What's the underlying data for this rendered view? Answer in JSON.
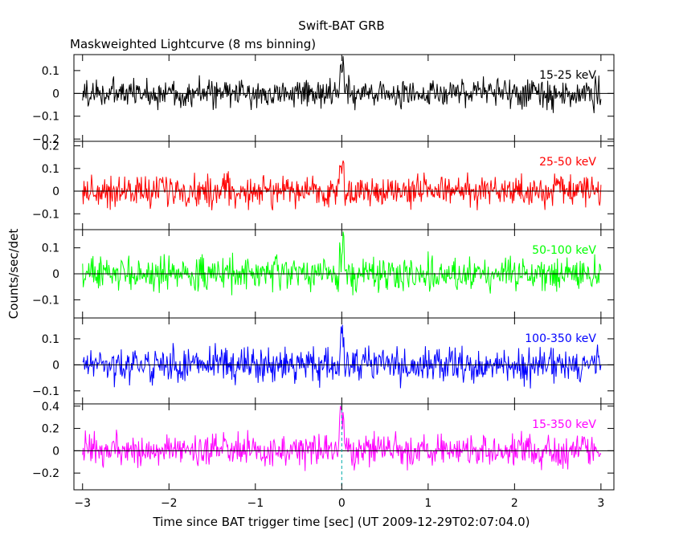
{
  "figure": {
    "title": "Swift-BAT GRB",
    "subtitle": "Maskweighted Lightcurve (8 ms binning)",
    "xlabel": "Time since BAT trigger time [sec] (UT 2009-12-29T02:07:04.0)",
    "ylabel": "Counts/sec/det"
  },
  "chart_data": [
    {
      "type": "line",
      "series": [
        {
          "name": "15-25 keV",
          "color": "#000000"
        }
      ],
      "xlim": [
        -3.1,
        3.15
      ],
      "ylim": [
        -0.21,
        0.17
      ],
      "yticks": [
        0.1,
        0,
        -0.1,
        -0.2
      ],
      "ytick_labels": [
        "0.1",
        "0",
        "−0.1",
        "−0.2"
      ],
      "noise_amplitude": 0.045,
      "x_start": -3.0,
      "x_end": 3.0,
      "bin": 0.008,
      "xticks": [
        -3,
        -2,
        -1,
        0,
        1,
        2,
        3
      ],
      "xtick_labels": [
        "−3",
        "−2",
        "−1",
        "0",
        "1",
        "2",
        "3"
      ],
      "grid": false,
      "zero_line": true
    },
    {
      "type": "line",
      "series": [
        {
          "name": "25-50 keV",
          "color": "#ff0000"
        }
      ],
      "xlim": [
        -3.1,
        3.15
      ],
      "ylim": [
        -0.17,
        0.22
      ],
      "yticks": [
        0.2,
        0.1,
        0,
        -0.1
      ],
      "ytick_labels": [
        "0.2",
        "0.1",
        "0",
        "−0.1"
      ],
      "noise_amplitude": 0.05,
      "x_start": -3.0,
      "x_end": 3.0,
      "bin": 0.008,
      "xticks": [
        -3,
        -2,
        -1,
        0,
        1,
        2,
        3
      ],
      "xtick_labels": [
        "−3",
        "−2",
        "−1",
        "0",
        "1",
        "2",
        "3"
      ],
      "grid": false,
      "zero_line": true
    },
    {
      "type": "line",
      "series": [
        {
          "name": "50-100 keV",
          "color": "#00ff00"
        }
      ],
      "xlim": [
        -3.1,
        3.15
      ],
      "ylim": [
        -0.17,
        0.17
      ],
      "yticks": [
        0.1,
        0,
        -0.1
      ],
      "ytick_labels": [
        "0.1",
        "0",
        "−0.1"
      ],
      "noise_amplitude": 0.045,
      "x_start": -3.0,
      "x_end": 3.0,
      "bin": 0.008,
      "xticks": [
        -3,
        -2,
        -1,
        0,
        1,
        2,
        3
      ],
      "xtick_labels": [
        "−3",
        "−2",
        "−1",
        "0",
        "1",
        "2",
        "3"
      ],
      "grid": false,
      "zero_line": true
    },
    {
      "type": "line",
      "series": [
        {
          "name": "100-350 keV",
          "color": "#0000ff"
        }
      ],
      "xlim": [
        -3.1,
        3.15
      ],
      "ylim": [
        -0.15,
        0.18
      ],
      "yticks": [
        0.1,
        0,
        -0.1
      ],
      "ytick_labels": [
        "0.1",
        "0",
        "−0.1"
      ],
      "noise_amplitude": 0.045,
      "x_start": -3.0,
      "x_end": 3.0,
      "bin": 0.008,
      "xticks": [
        -3,
        -2,
        -1,
        0,
        1,
        2,
        3
      ],
      "xtick_labels": [
        "−3",
        "−2",
        "−1",
        "0",
        "1",
        "2",
        "3"
      ],
      "grid": false,
      "zero_line": true
    },
    {
      "type": "line",
      "series": [
        {
          "name": "15-350 keV",
          "color": "#ff00ff"
        }
      ],
      "xlim": [
        -3.1,
        3.15
      ],
      "ylim": [
        -0.35,
        0.42
      ],
      "yticks": [
        0.4,
        0.2,
        0,
        -0.2
      ],
      "ytick_labels": [
        "0.4",
        "0.2",
        "0",
        "−0.2"
      ],
      "noise_amplitude": 0.1,
      "x_start": -3.0,
      "x_end": 3.0,
      "bin": 0.008,
      "xticks": [
        -3,
        -2,
        -1,
        0,
        1,
        2,
        3
      ],
      "xtick_labels": [
        "−3",
        "−2",
        "−1",
        "0",
        "1",
        "2",
        "3"
      ],
      "grid": false,
      "zero_line": true,
      "trigger_marker": {
        "x": 0,
        "color": "#00aaaa"
      }
    }
  ]
}
